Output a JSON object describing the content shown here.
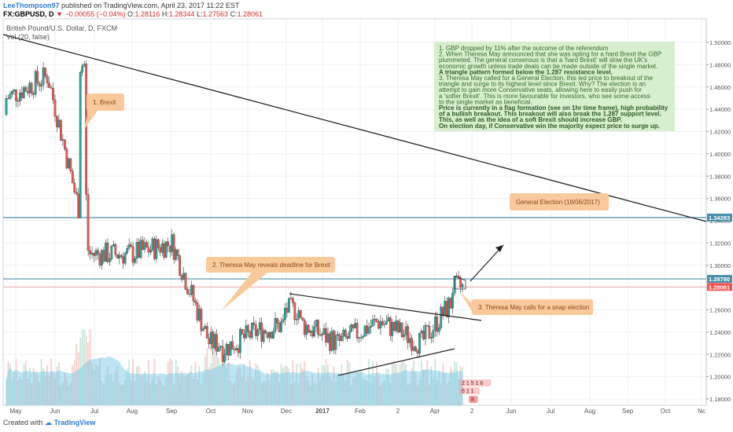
{
  "header": {
    "author": "LeeThompson97",
    "published": "published on TradingView.com, April 23, 2017 11:22 EST",
    "symbol": "FX:GBPUSD, D",
    "change": "▼ −0.00055 (−0.04%)",
    "o_label": "O:",
    "o_value": "1.28116",
    "h_label": "H:",
    "h_value": "1.28344",
    "l_label": "L:",
    "l_value": "1.27563",
    "c_label": "C:",
    "c_value": "1.28061",
    "instrument": "British Pound/U.S. Dollar, D, FXCM",
    "vol_label": "Vol (20, false)"
  },
  "footer": {
    "created_with": "Created with",
    "brand": "TradingView"
  },
  "colors": {
    "up": "#26a69a",
    "down": "#ef5350",
    "hline": "#4a8fa8",
    "close_line": "#ef5350",
    "callout": "#f8c99b",
    "callout_text": "#8a4a1a",
    "note_bg": "#d7efcc",
    "volume": "#6ec6e6"
  },
  "chart_data": {
    "type": "candlestick",
    "x_ticks": [
      "May",
      "Jun",
      "Jul",
      "Aug",
      "Sep",
      "Oct",
      "Nov",
      "Dec",
      "2017",
      "Feb",
      "2",
      "Apr",
      "2",
      "Jun",
      "Jul",
      "Aug",
      "Sep",
      "Oct",
      "Nc"
    ],
    "y_ticks": [
      "1.50000",
      "1.48000",
      "1.46000",
      "1.44000",
      "1.42000",
      "1.40000",
      "1.38000",
      "1.36000",
      "1.34000",
      "1.32000",
      "1.30000",
      "1.28000",
      "1.26000",
      "1.24000",
      "1.22000",
      "1.20000",
      "1.18000"
    ],
    "ylim": [
      1.175,
      1.51
    ],
    "price_labels": [
      {
        "value": 1.34283,
        "text": "1.34283"
      },
      {
        "value": 1.2878,
        "text": "1.28780"
      },
      {
        "value": 1.28061,
        "text": "1.28061"
      }
    ],
    "horizontal_levels": [
      1.34283,
      1.2878
    ],
    "close_level": 1.28061,
    "path_monthly": [
      {
        "month": "May",
        "price": 1.45
      },
      {
        "month": "Jun",
        "price": 1.47
      },
      {
        "month": "Jul",
        "price": 1.31
      },
      {
        "month": "Aug",
        "price": 1.31
      },
      {
        "month": "Sep",
        "price": 1.32
      },
      {
        "month": "Oct",
        "price": 1.22
      },
      {
        "month": "Nov",
        "price": 1.24
      },
      {
        "month": "Dec",
        "price": 1.25
      },
      {
        "month": "Jan",
        "price": 1.23
      },
      {
        "month": "Feb",
        "price": 1.25
      },
      {
        "month": "Mar",
        "price": 1.23
      },
      {
        "month": "Apr",
        "price": 1.28
      }
    ],
    "annotations": [
      {
        "id": "brexit",
        "text": "1. Brexit"
      },
      {
        "id": "deadline",
        "text": "2. Theresa May reveals deadline for Brexit"
      },
      {
        "id": "snap",
        "text": "3. Theresa May calls for a snap election"
      },
      {
        "id": "election",
        "text": "General Election (18/06/2017)"
      }
    ],
    "note_lines": [
      {
        "text": "1. GBP dropped by 11% after the outcome of the referendum",
        "bold": false
      },
      {
        "text": "2. When Theresa May announced that she was opting for a hard Brexit the GBP",
        "bold": false
      },
      {
        "text": "plummeted. The general consensus is that a 'hard Brexit' will slow the UK's",
        "bold": false
      },
      {
        "text": "economic growth unless trade deals can be made outside of the single market.",
        "bold": false
      },
      {
        "text": "A triangle pattern formed below the 1.287 resistance level.",
        "bold": true
      },
      {
        "text": "3. Theresa May called for a General Election, this led price to breakout of the",
        "bold": false
      },
      {
        "text": "triangle and surge to its highest level since Brexit. Why? The election is an",
        "bold": false
      },
      {
        "text": "attempt to gain more Conservative seats, allowing here to easily push for",
        "bold": false
      },
      {
        "text": "a 'softer Brexit'. This is more favourable for investors, who see some access",
        "bold": false
      },
      {
        "text": "to the single market as beneficial.",
        "bold": false
      },
      {
        "text": "Price is currently in a flag formation (see on 1hr time frame), high probability",
        "bold": true
      },
      {
        "text": "of a bullish breakout. This breakout will also break the 1.287 support level.",
        "bold": true
      },
      {
        "text": "This, as well as the idea of a soft Brexit should increase GBP.",
        "bold": true
      },
      {
        "text": "On election day, if Conservative win the majority expect price to surge up.",
        "bold": true
      }
    ],
    "vol_markers": [
      "2 1 5 1 6",
      "6 1 1",
      "E"
    ]
  }
}
